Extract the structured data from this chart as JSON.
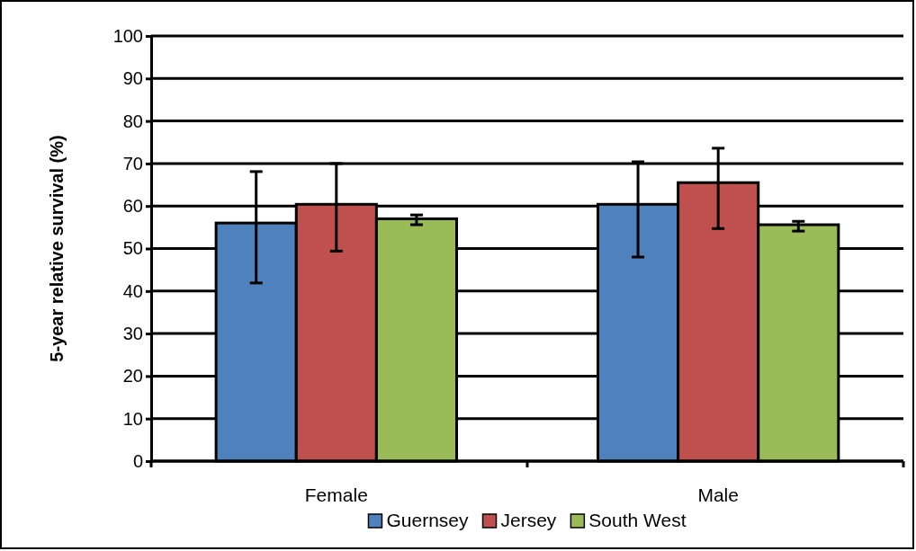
{
  "chart_data": {
    "type": "bar",
    "ylabel": "5-year relative survival (%)",
    "categories": [
      "Female",
      "Male"
    ],
    "series": [
      {
        "name": "Guernsey",
        "color": "#4f81bd",
        "values": [
          56.0,
          60.4
        ],
        "errors": [
          [
            41.9,
            68.1
          ],
          [
            48.0,
            70.4
          ]
        ]
      },
      {
        "name": "Jersey",
        "color": "#c0504d",
        "values": [
          60.4,
          65.5
        ],
        "errors": [
          [
            49.4,
            70.0
          ],
          [
            54.7,
            73.6
          ]
        ]
      },
      {
        "name": "South West",
        "color": "#9bbb59",
        "values": [
          57.0,
          55.6
        ],
        "errors": [
          [
            55.6,
            57.9
          ],
          [
            54.1,
            56.4
          ]
        ]
      }
    ],
    "ylim": [
      0,
      100
    ],
    "yticks": [
      0,
      10,
      20,
      30,
      40,
      50,
      60,
      70,
      80,
      90,
      100
    ],
    "grid": "y",
    "legend": "bottom"
  }
}
